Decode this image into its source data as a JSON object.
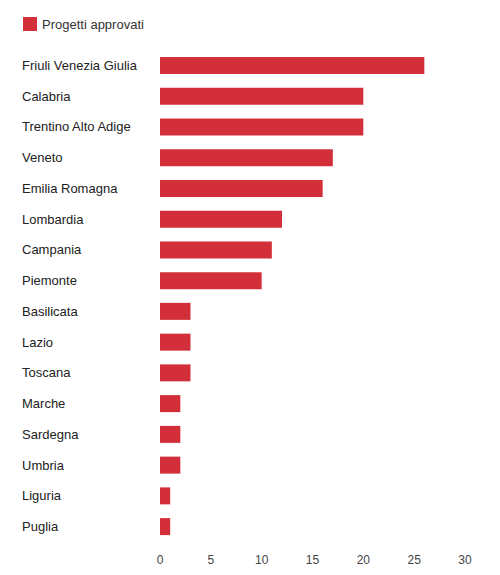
{
  "chart_data": {
    "type": "bar",
    "orientation": "horizontal",
    "categories": [
      "Friuli Venezia Giulia",
      "Calabria",
      "Trentino Alto Adige",
      "Veneto",
      "Emilia Romagna",
      "Lombardia",
      "Campania",
      "Piemonte",
      "Basilicata",
      "Lazio",
      "Toscana",
      "Marche",
      "Sardegna",
      "Umbria",
      "Liguria",
      "Puglia"
    ],
    "series": [
      {
        "name": "Progetti approvati",
        "color": "#d32f3a",
        "values": [
          26,
          20,
          20,
          17,
          16,
          12,
          11,
          10,
          3,
          3,
          3,
          2,
          2,
          2,
          1,
          1
        ]
      }
    ],
    "xlim": [
      0,
      30
    ],
    "xticks": [
      0,
      5,
      10,
      15,
      20,
      25,
      30
    ],
    "grid": false,
    "legend": "top-left",
    "tick_labels": true
  }
}
